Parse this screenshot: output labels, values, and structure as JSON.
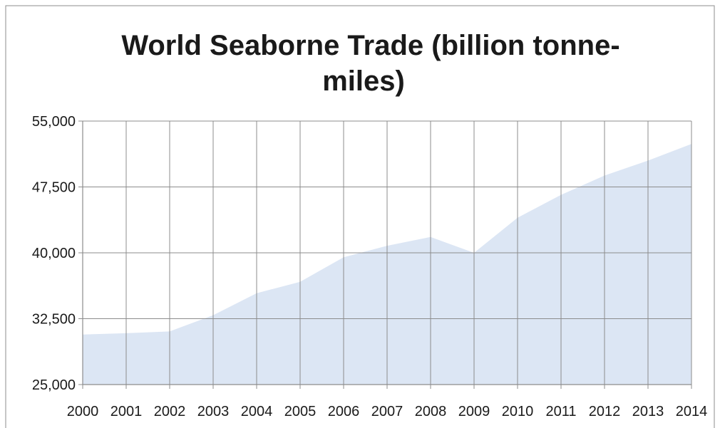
{
  "chart_data": {
    "type": "area",
    "title": "World Seaborne Trade (billion tonne-miles)",
    "title_lines": [
      "World Seaborne Trade (billion tonne-",
      "miles)"
    ],
    "xlabel": "",
    "ylabel": "",
    "categories": [
      "2000",
      "2001",
      "2002",
      "2003",
      "2004",
      "2005",
      "2006",
      "2007",
      "2008",
      "2009",
      "2010",
      "2011",
      "2012",
      "2013",
      "2014"
    ],
    "series": [
      {
        "values": [
          30700,
          30850,
          31050,
          32900,
          35400,
          36700,
          39500,
          40800,
          41800,
          40000,
          44000,
          46600,
          48800,
          50500,
          52400
        ]
      }
    ],
    "ylim": [
      25000,
      55000
    ],
    "yticks": [
      25000,
      32500,
      40000,
      47500,
      55000
    ],
    "ytick_labels": [
      "25,000",
      "32,500",
      "40,000",
      "47,500",
      "55,000"
    ],
    "grid": true,
    "legend": "none",
    "colors": {
      "area_fill": "#dce6f4",
      "grid": "#8c8c8c",
      "frame": "#8c8c8c"
    }
  }
}
